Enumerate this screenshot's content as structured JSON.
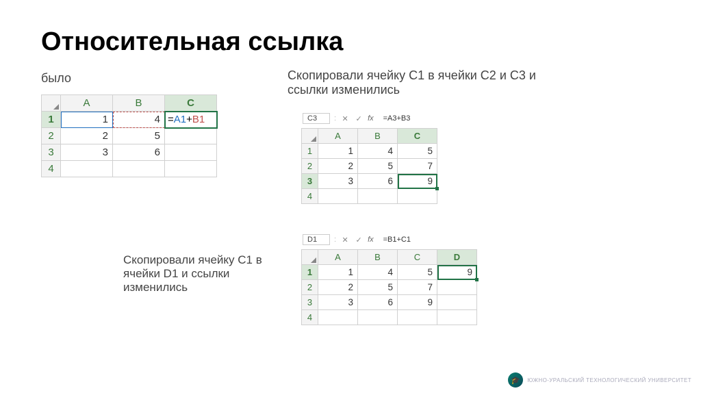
{
  "title": "Относительная ссылка",
  "labels": {
    "was": "было",
    "copied_c": "Скопировали ячейку С1 в ячейки С2 и С3 и ссылки изменились",
    "copied_d": "Скопировали ячейку С1 в ячейки D1 и ссылки изменились"
  },
  "sheet1": {
    "columns": [
      "A",
      "B",
      "C"
    ],
    "selected_col": "C",
    "selected_row": "1",
    "rows": [
      "1",
      "2",
      "3",
      "4"
    ],
    "cells": {
      "A1": "1",
      "B1": "4",
      "A2": "2",
      "B2": "5",
      "A3": "3",
      "B3": "6"
    },
    "formula_parts": {
      "eq": "=",
      "ref1": "A1",
      "op": "+",
      "ref2": "B1"
    }
  },
  "sheet2": {
    "namebox": "C3",
    "fx_value": "=A3+B3",
    "columns": [
      "A",
      "B",
      "C"
    ],
    "selected_col": "C",
    "selected_row": "3",
    "rows": [
      "1",
      "2",
      "3",
      "4"
    ],
    "cells": {
      "A1": "1",
      "B1": "4",
      "C1": "5",
      "A2": "2",
      "B2": "5",
      "C2": "7",
      "A3": "3",
      "B3": "6",
      "C3": "9"
    }
  },
  "sheet3": {
    "namebox": "D1",
    "fx_value": "=B1+C1",
    "columns": [
      "A",
      "B",
      "C",
      "D"
    ],
    "selected_col": "D",
    "selected_row": "1",
    "rows": [
      "1",
      "2",
      "3",
      "4"
    ],
    "cells": {
      "A1": "1",
      "B1": "4",
      "C1": "5",
      "D1": "9",
      "A2": "2",
      "B2": "5",
      "C2": "7",
      "A3": "3",
      "B3": "6",
      "C3": "9"
    }
  },
  "logo_text": "ЮЖНО-УРАЛЬСКИЙ ТЕХНОЛОГИЧЕСКИЙ УНИВЕРСИТЕТ",
  "colors": {
    "accent_green": "#217346",
    "ref_blue": "#1f6fc0",
    "ref_red": "#c0504d",
    "gridline": "#d0d0d0",
    "header_bg": "#f3f3f3"
  }
}
